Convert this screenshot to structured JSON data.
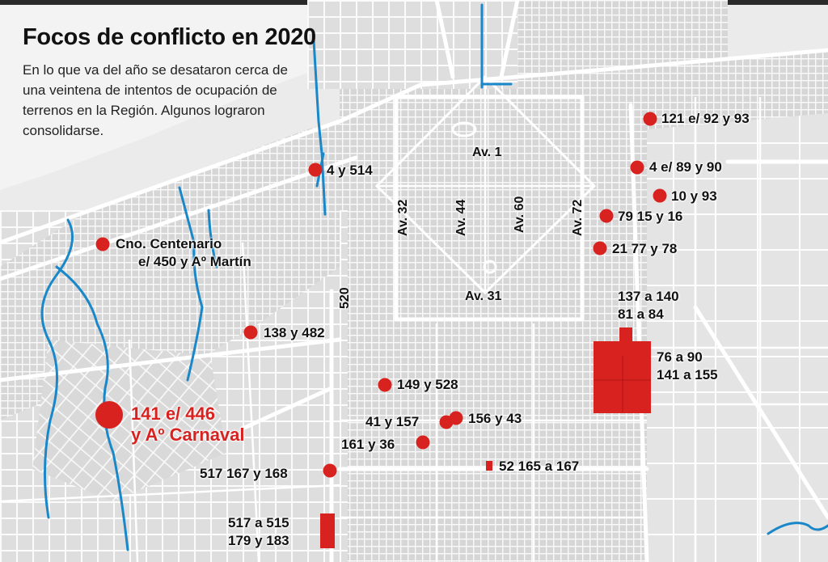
{
  "title": "Focos de conflicto en 2020",
  "subtitle": "En lo que va del año se desataron cerca de una veintena de intentos de ocupación de terrenos en la Región. Algunos lograron consolidarse.",
  "colors": {
    "marker": "#d8221f",
    "water": "#1a87c9",
    "street": "#ffffff",
    "background": "#e9e9e9"
  },
  "streets": {
    "av1": "Av. 1",
    "av31": "Av. 31",
    "av32": "Av. 32",
    "av44": "Av. 44",
    "av60": "Av. 60",
    "av72": "Av. 72",
    "s520": "520"
  },
  "labels": {
    "l1": "121 e/ 92 y 93",
    "l2": "4 y 514",
    "l3": "4 e/ 89 y 90",
    "l4": "10 y 93",
    "l5": "79 15 y 16",
    "l6": "21 77 y 78",
    "l7a": "Cno. Centenario",
    "l7b": "e/ 450 y Aº Martín",
    "l8a": "137 a 140",
    "l8b": "81 a 84",
    "l9": "138 y 482",
    "l10a": "76 a 90",
    "l10b": "141 a 155",
    "l11": "149 y 528",
    "l12a": "141 e/ 446",
    "l12b": "y Aº Carnaval",
    "l13": "41 y 157",
    "l14": "156 y 43",
    "l15": "161 y 36",
    "l16": "517 167 y 168",
    "l17": "52 165 a 167",
    "l18a": "517 a 515",
    "l18b": "179 y 183"
  }
}
